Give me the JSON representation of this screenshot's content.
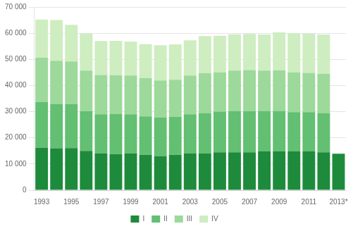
{
  "chart_data": {
    "type": "bar",
    "stacked": true,
    "categories": [
      "1993",
      null,
      "1995",
      null,
      "1997",
      null,
      "1999",
      null,
      "2001",
      null,
      "2003",
      null,
      "2005",
      null,
      "2007",
      null,
      "2009",
      null,
      "2011",
      null,
      "2013*"
    ],
    "series": [
      {
        "name": "I",
        "color": "#1e8b3c",
        "values": [
          16200,
          16000,
          16100,
          15000,
          14000,
          13800,
          14000,
          13500,
          13000,
          13500,
          14000,
          14000,
          14500,
          14500,
          14500,
          14800,
          14800,
          14800,
          14800,
          14500,
          13900
        ]
      },
      {
        "name": "II",
        "color": "#63bf72",
        "values": [
          17500,
          17000,
          16800,
          15200,
          15000,
          15300,
          15000,
          14700,
          14700,
          14500,
          15000,
          15500,
          15500,
          15800,
          15700,
          15500,
          15500,
          15000,
          15000,
          15000,
          0
        ]
      },
      {
        "name": "III",
        "color": "#9dd99a",
        "values": [
          17000,
          16500,
          16300,
          15500,
          15000,
          14800,
          14800,
          14600,
          14200,
          14200,
          14800,
          15200,
          15000,
          15400,
          15700,
          15400,
          15500,
          15200,
          15000,
          15000,
          0
        ]
      },
      {
        "name": "IV",
        "color": "#ceedc0",
        "values": [
          14500,
          15500,
          14000,
          14200,
          13000,
          13200,
          13000,
          13000,
          13500,
          13500,
          13500,
          14200,
          14000,
          13900,
          13800,
          13800,
          14500,
          15000,
          15000,
          15000,
          0
        ]
      }
    ],
    "ylim": [
      0,
      70000
    ],
    "yticks": [
      0,
      {
        "value": 10000,
        "label": "10 000"
      },
      {
        "value": 20000,
        "label": "20 000"
      },
      {
        "value": 30000,
        "label": "30 000"
      },
      {
        "value": 40000,
        "label": "40 000"
      },
      {
        "value": 50000,
        "label": "50 000"
      },
      {
        "value": 60000,
        "label": "60 000"
      },
      {
        "value": 70000,
        "label": "70 000"
      }
    ],
    "grid": "y",
    "legend": "bottom"
  }
}
